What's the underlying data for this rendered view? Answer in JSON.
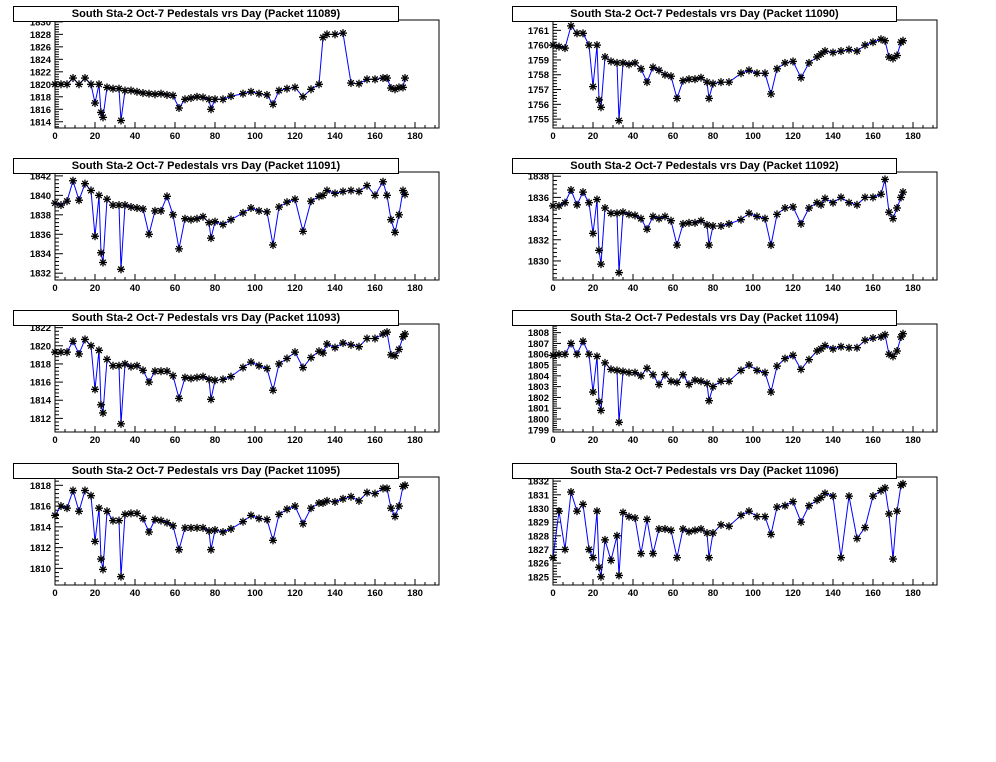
{
  "chart_data": {
    "type": "line",
    "layout": "grid-4x2",
    "x": [
      0,
      3,
      6,
      9,
      12,
      15,
      18,
      20,
      22,
      23,
      24,
      26,
      29,
      32,
      33,
      35,
      38,
      41,
      44,
      47,
      50,
      53,
      56,
      59,
      62,
      65,
      68,
      71,
      74,
      77,
      78,
      80,
      84,
      88,
      94,
      98,
      102,
      106,
      109,
      112,
      116,
      120,
      124,
      128,
      132,
      134,
      136,
      140,
      144,
      148,
      152,
      156,
      160,
      164,
      166,
      168,
      170,
      172,
      174,
      175
    ],
    "xlim": [
      0,
      192
    ],
    "xticks": [
      0,
      20,
      40,
      60,
      80,
      100,
      120,
      140,
      160,
      180
    ],
    "xlabel": "",
    "ylabel": "",
    "grid": false,
    "marker": "asterisk",
    "marker_color": "#000000",
    "line_color": "#0000ff",
    "panels": [
      {
        "title": "South Sta-2 Oct-7 Pedestals vrs Day (Packet 11089)",
        "ylim": [
          1813,
          1830.3
        ],
        "yticks": [
          1814,
          1816,
          1818,
          1820,
          1822,
          1824,
          1826,
          1828,
          1830
        ],
        "values": [
          1820,
          1820,
          1820,
          1821,
          1820,
          1821,
          1820,
          1817,
          1820,
          1815.5,
          1814.7,
          1819.5,
          1819.3,
          1819.3,
          1814.2,
          1819,
          1819,
          1818.8,
          1818.6,
          1818.5,
          1818.4,
          1818.5,
          1818.3,
          1818.2,
          1816.2,
          1817.6,
          1817.8,
          1818,
          1817.9,
          1817.6,
          1816,
          1817.6,
          1817.6,
          1818.1,
          1818.5,
          1818.8,
          1818.5,
          1818.3,
          1816.8,
          1819,
          1819.3,
          1819.5,
          1818,
          1819.2,
          1820,
          1827.5,
          1828,
          1828,
          1828.2,
          1820.2,
          1820.1,
          1820.8,
          1820.8,
          1821,
          1821,
          1819.4,
          1819.2,
          1819.5,
          1819.5,
          1821
        ]
      },
      {
        "title": "South Sta-2 Oct-7 Pedestals vrs Day (Packet 11090)",
        "ylim": [
          1754.4,
          1761.7
        ],
        "yticks": [
          1755,
          1756,
          1757,
          1758,
          1759,
          1760,
          1761,
          1762
        ],
        "values": [
          1760,
          1759.9,
          1759.8,
          1761.3,
          1760.8,
          1760.8,
          1760,
          1757.2,
          1760,
          1756.3,
          1755.8,
          1759.2,
          1758.9,
          1758.8,
          1754.9,
          1758.8,
          1758.7,
          1758.8,
          1758.4,
          1757.5,
          1758.5,
          1758.3,
          1758,
          1757.9,
          1756.4,
          1757.6,
          1757.7,
          1757.7,
          1757.8,
          1757.5,
          1756.4,
          1757.4,
          1757.5,
          1757.5,
          1758.1,
          1758.3,
          1758.1,
          1758.1,
          1756.7,
          1758.4,
          1758.8,
          1758.9,
          1757.8,
          1758.8,
          1759.2,
          1759.4,
          1759.6,
          1759.5,
          1759.6,
          1759.7,
          1759.6,
          1760,
          1760.2,
          1760.4,
          1760.3,
          1759.2,
          1759.1,
          1759.3,
          1760.2,
          1760.3
        ]
      },
      {
        "title": "South Sta-2 Oct-7 Pedestals vrs Day (Packet 11091)",
        "ylim": [
          1831.3,
          1842.4
        ],
        "yticks": [
          1832,
          1834,
          1836,
          1838,
          1840,
          1842
        ],
        "values": [
          1839.2,
          1839,
          1839.4,
          1841.5,
          1839.5,
          1841.2,
          1840.5,
          1835.8,
          1840,
          1834.1,
          1833.1,
          1839.6,
          1839,
          1839,
          1832.4,
          1839,
          1838.8,
          1838.7,
          1838.6,
          1836,
          1838.4,
          1838.4,
          1839.9,
          1838,
          1834.5,
          1837.6,
          1837.5,
          1837.6,
          1837.8,
          1837.2,
          1835.6,
          1837.3,
          1837,
          1837.5,
          1838.2,
          1838.7,
          1838.4,
          1838.3,
          1834.9,
          1838.8,
          1839.3,
          1839.6,
          1836.3,
          1839.4,
          1839.9,
          1840,
          1840.5,
          1840.2,
          1840.4,
          1840.5,
          1840.4,
          1841,
          1840,
          1841.4,
          1840,
          1837.5,
          1836.2,
          1838,
          1840.5,
          1840.1
        ]
      },
      {
        "title": "South Sta-2 Oct-7 Pedestals vrs Day (Packet 11092)",
        "ylim": [
          1828.2,
          1838.4
        ],
        "yticks": [
          1830,
          1832,
          1834,
          1836,
          1838
        ],
        "values": [
          1835.2,
          1835.2,
          1835.5,
          1836.7,
          1835.3,
          1836.5,
          1835.5,
          1832.6,
          1835.8,
          1831,
          1829.7,
          1835,
          1834.5,
          1834.5,
          1828.9,
          1834.6,
          1834.4,
          1834.3,
          1834,
          1833,
          1834.2,
          1834,
          1834.2,
          1833.8,
          1831.5,
          1833.5,
          1833.6,
          1833.6,
          1833.8,
          1833.4,
          1831.5,
          1833.3,
          1833.3,
          1833.5,
          1833.9,
          1834.5,
          1834.2,
          1834,
          1831.5,
          1834.4,
          1835,
          1835.1,
          1833.5,
          1835,
          1835.5,
          1835.3,
          1835.9,
          1835.5,
          1836,
          1835.5,
          1835.3,
          1836,
          1836,
          1836.3,
          1837.7,
          1834.6,
          1834,
          1835,
          1836,
          1836.5
        ]
      },
      {
        "title": "South Sta-2 Oct-7 Pedestals vrs Day (Packet 11093)",
        "ylim": [
          1810.5,
          1822.4
        ],
        "yticks": [
          1812,
          1814,
          1816,
          1818,
          1820,
          1822
        ],
        "values": [
          1819.3,
          1819.3,
          1819.3,
          1820.5,
          1819.1,
          1820.7,
          1820,
          1815.2,
          1819.5,
          1813.5,
          1812.6,
          1818.5,
          1817.8,
          1817.8,
          1811.4,
          1818,
          1817.7,
          1817.8,
          1817.3,
          1816,
          1817.2,
          1817.2,
          1817.2,
          1816.7,
          1814.2,
          1816.5,
          1816.4,
          1816.5,
          1816.6,
          1816.3,
          1814.1,
          1816.2,
          1816.3,
          1816.6,
          1817.6,
          1818.2,
          1817.8,
          1817.5,
          1815.1,
          1818,
          1818.6,
          1819.3,
          1817.6,
          1818.7,
          1819.4,
          1819.2,
          1820.2,
          1819.8,
          1820.3,
          1820.1,
          1819.9,
          1820.8,
          1820.8,
          1821.3,
          1821.5,
          1819,
          1818.9,
          1819.6,
          1821,
          1821.3
        ]
      },
      {
        "title": "South Sta-2 Oct-7 Pedestals vrs Day (Packet 11094)",
        "ylim": [
          1798.8,
          1808.8
        ],
        "yticks": [
          1799,
          1800,
          1801,
          1802,
          1803,
          1804,
          1805,
          1806,
          1807,
          1808
        ],
        "values": [
          1805.9,
          1806,
          1806,
          1807,
          1806,
          1807.2,
          1806,
          1802.5,
          1805.8,
          1801.6,
          1800.8,
          1805.2,
          1804.6,
          1804.5,
          1799.7,
          1804.4,
          1804.3,
          1804.3,
          1804,
          1804.7,
          1804.1,
          1803.2,
          1804.1,
          1803.5,
          1803.4,
          1804.1,
          1803.2,
          1803.6,
          1803.5,
          1803.3,
          1801.7,
          1803,
          1803.5,
          1803.5,
          1804.5,
          1805,
          1804.5,
          1804.3,
          1802.5,
          1804.9,
          1805.6,
          1805.9,
          1804.6,
          1805.5,
          1806.3,
          1806.5,
          1806.8,
          1806.5,
          1806.7,
          1806.6,
          1806.6,
          1807.3,
          1807.5,
          1807.6,
          1807.8,
          1806,
          1805.8,
          1806.3,
          1807.6,
          1807.9
        ]
      },
      {
        "title": "South Sta-2 Oct-7 Pedestals vrs Day (Packet 11095)",
        "ylim": [
          1808.4,
          1818.8
        ],
        "yticks": [
          1810,
          1812,
          1814,
          1816,
          1818
        ],
        "values": [
          1815.1,
          1816,
          1815.8,
          1817.5,
          1815.5,
          1817.5,
          1817,
          1812.6,
          1815.8,
          1810.9,
          1809.9,
          1815.5,
          1814.6,
          1814.6,
          1809.2,
          1815.2,
          1815.3,
          1815.3,
          1814.8,
          1813.5,
          1814.7,
          1814.6,
          1814.4,
          1814.1,
          1811.8,
          1813.9,
          1813.9,
          1813.9,
          1813.9,
          1813.6,
          1811.8,
          1813.7,
          1813.5,
          1813.8,
          1814.5,
          1815.1,
          1814.8,
          1814.7,
          1812.7,
          1815.2,
          1815.7,
          1816,
          1814.3,
          1815.8,
          1816.3,
          1816.3,
          1816.5,
          1816.4,
          1816.7,
          1816.9,
          1816.5,
          1817.3,
          1817.2,
          1817.7,
          1817.7,
          1815.8,
          1815,
          1816,
          1817.9,
          1818
        ]
      },
      {
        "title": "South Sta-2 Oct-7 Pedestals vrs Day (Packet 11096)",
        "ylim": [
          1824.4,
          1832.3
        ],
        "yticks": [
          1825,
          1826,
          1827,
          1828,
          1829,
          1830,
          1831,
          1832
        ],
        "values": [
          1826.4,
          1829.8,
          1827,
          1831.2,
          1829.8,
          1830.3,
          1827,
          1826.4,
          1829.8,
          1825.7,
          1825,
          1827.7,
          1826.2,
          1828,
          1825.1,
          1829.7,
          1829.4,
          1829.3,
          1826.7,
          1829.2,
          1826.7,
          1828.5,
          1828.5,
          1828.4,
          1826.4,
          1828.5,
          1828.3,
          1828.4,
          1828.5,
          1828.2,
          1826.4,
          1828.2,
          1828.8,
          1828.7,
          1829.5,
          1829.8,
          1829.4,
          1829.4,
          1828.1,
          1830.1,
          1830.2,
          1830.5,
          1829,
          1830.2,
          1830.6,
          1830.8,
          1831.1,
          1830.9,
          1826.4,
          1830.9,
          1827.8,
          1828.6,
          1830.9,
          1831.3,
          1831.5,
          1829.6,
          1826.3,
          1829.8,
          1831.7,
          1831.8
        ]
      }
    ]
  }
}
